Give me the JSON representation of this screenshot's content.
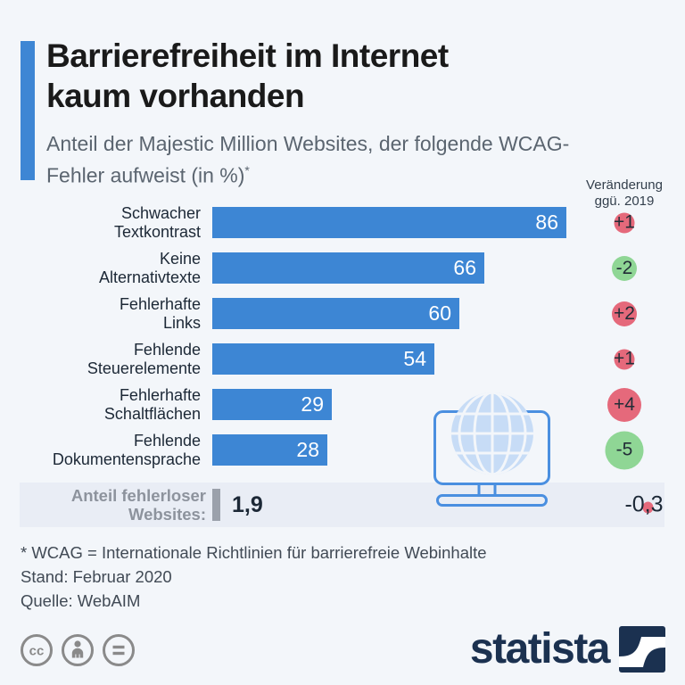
{
  "header": {
    "title_line1": "Barrierefreiheit im Internet",
    "title_line2": "kaum vorhanden",
    "subtitle": "Anteil der Majestic Million Websites, der folgende WCAG-Fehler aufweist (in %)",
    "subtitle_asterisk": "*",
    "change_header_line1": "Veränderung",
    "change_header_line2": "ggü. 2019"
  },
  "chart_data": {
    "type": "bar",
    "orientation": "horizontal",
    "unit": "%",
    "title": "Barrierefreiheit im Internet kaum vorhanden",
    "subtitle": "Anteil der Majestic Million Websites, der folgende WCAG-Fehler aufweist (in %)*",
    "categories": [
      "Schwacher Textkontrast",
      "Keine Alternativtexte",
      "Fehlerhafte Links",
      "Fehlende Steuerelemente",
      "Fehlerhafte Schaltflächen",
      "Fehlende Dokumentensprache"
    ],
    "values": [
      86,
      66,
      60,
      54,
      29,
      28
    ],
    "changes_vs_2019": [
      "+1",
      "-2",
      "+2",
      "+1",
      "+4",
      "-5"
    ],
    "xlim": [
      0,
      86
    ],
    "grid": false,
    "legend": false,
    "rows": [
      {
        "label_line1": "Schwacher",
        "label_line2": "Textkontrast",
        "value": 86,
        "value_label": "86",
        "change": "+1"
      },
      {
        "label_line1": "Keine",
        "label_line2": "Alternativtexte",
        "value": 66,
        "value_label": "66",
        "change": "-2"
      },
      {
        "label_line1": "Fehlerhafte",
        "label_line2": "Links",
        "value": 60,
        "value_label": "60",
        "change": "+2"
      },
      {
        "label_line1": "Fehlende",
        "label_line2": "Steuerelemente",
        "value": 54,
        "value_label": "54",
        "change": "+1"
      },
      {
        "label_line1": "Fehlerhafte",
        "label_line2": "Schaltflächen",
        "value": 29,
        "value_label": "29",
        "change": "+4"
      },
      {
        "label_line1": "Fehlende",
        "label_line2": "Dokumentensprache",
        "value": 28,
        "value_label": "28",
        "change": "-5"
      }
    ],
    "summary": {
      "label_line1": "Anteil fehlerloser",
      "label_line2": "Websites:",
      "value": 1.9,
      "value_label": "1,9",
      "change_label": "-0,3",
      "dot_color": "#e5697b"
    }
  },
  "footnotes": [
    "* WCAG = Internationale Richtlinien für barrierefreie Webinhalte",
    "Stand: Februar 2020",
    "Quelle: WebAIM"
  ],
  "branding": {
    "logo_text": "statista",
    "cc_icon_1": "cc",
    "cc_icon_2": "attribution-person",
    "cc_icon_3": "equals"
  },
  "colors": {
    "page_bg": "#f3f6fa",
    "bar": "#3d86d4",
    "accent_bar": "#3e86d4",
    "increase": "#e5697b",
    "decrease": "#8fd695",
    "band_bg": "#e9edf5",
    "logo_navy": "#1b3150",
    "mini_bar": "#9ba1ab"
  }
}
